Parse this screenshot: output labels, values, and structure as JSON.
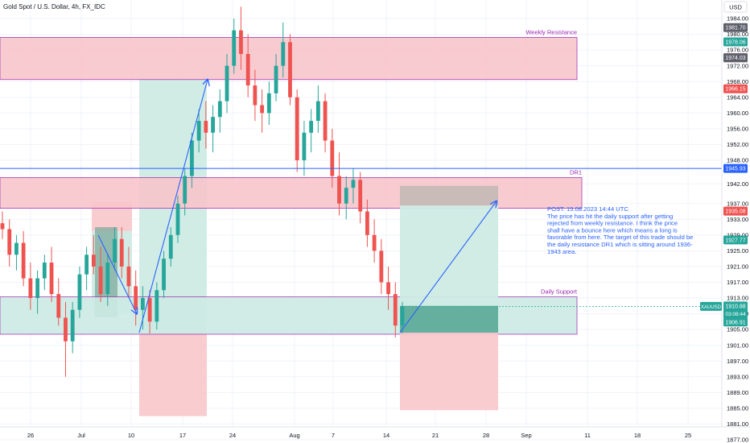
{
  "chart_title": "Gold Spot / U.S. Dollar, 4h, FX_IDC",
  "currency": "USD",
  "colors": {
    "up": "#26a69a",
    "down": "#ef5350",
    "zone_red_fill": "#f8c6cb",
    "zone_red_border": "#9c27b0",
    "zone_green_fill": "#cdebe4",
    "line_blue": "#2962ff",
    "grid": "#f0f3fa"
  },
  "annotations": {
    "weekly_resistance": "Weekly Resistance",
    "dr1": "DR1",
    "daily_support": "Daily Support",
    "post_lines": [
      "POST: 15.08.2023 14:44 UTC",
      "The price has hit the daily support after getting",
      "rejected from weekly resistance.  I think the price",
      "shall have a bounce here which means a long is",
      "favorable from here. The target of this trade should be",
      "the daily resistance DR1 which is sitting around 1936-",
      "1943 area."
    ]
  },
  "price_tags": [
    {
      "text": "1981.70",
      "value": 1981.7,
      "color": "#5d606b"
    },
    {
      "text": "1978.06",
      "value": 1978.06,
      "color": "#26a69a"
    },
    {
      "text": "1974.04",
      "value": 1974.04,
      "color": "#ef5350"
    },
    {
      "text": "1974.03",
      "value": 1974.03,
      "color": "#5d606b"
    },
    {
      "text": "1966.15",
      "value": 1966.15,
      "color": "#ef5350"
    },
    {
      "text": "1945.93",
      "value": 1945.93,
      "color": "#2962ff"
    },
    {
      "text": "1935.08",
      "value": 1935.08,
      "color": "#ef5350"
    },
    {
      "text": "1927.77",
      "value": 1927.77,
      "color": "#26a69a"
    },
    {
      "text": "1906.91",
      "value": 1906.91,
      "color": "#26a69a"
    }
  ],
  "last_price": {
    "symbol": "XAUUSD",
    "price": "1910.88",
    "countdown": "03:08:44",
    "value": 1910.88
  },
  "chart_data": {
    "type": "candlestick",
    "title": "Gold Spot / U.S. Dollar, 4h, FX_IDC",
    "ylim": [
      1875,
      1990
    ],
    "y_ticks": [
      "1984.00",
      "1980.00",
      "1976.00",
      "1972.00",
      "1968.00",
      "1964.00",
      "1960.00",
      "1956.00",
      "1952.00",
      "1948.00",
      "1942.00",
      "1937.00",
      "1933.00",
      "1929.00",
      "1925.00",
      "1921.00",
      "1917.00",
      "1913.00",
      "1909.00",
      "1905.00",
      "1901.00",
      "1897.00",
      "1893.00",
      "1889.00",
      "1885.00",
      "1881.00",
      "1877.00"
    ],
    "x_ticks": [
      "26",
      "Jul",
      "10",
      "17",
      "24",
      "Aug",
      "7",
      "14",
      "21",
      "28",
      "Sep",
      "11",
      "18",
      "25"
    ],
    "ohlc": [
      [
        1932.0,
        1935.0,
        1928.0,
        1930.5
      ],
      [
        1930.5,
        1933.0,
        1921.0,
        1924.0
      ],
      [
        1924.0,
        1929.0,
        1920.0,
        1927.0
      ],
      [
        1927.0,
        1930.0,
        1916.0,
        1918.0
      ],
      [
        1918.0,
        1922.0,
        1910.0,
        1913.0
      ],
      [
        1913.0,
        1920.0,
        1909.0,
        1918.0
      ],
      [
        1918.0,
        1924.0,
        1915.0,
        1922.0
      ],
      [
        1922.0,
        1926.0,
        1912.0,
        1914.0
      ],
      [
        1914.0,
        1918.0,
        1906.0,
        1908.0
      ],
      [
        1908.0,
        1912.0,
        1893.0,
        1902.0
      ],
      [
        1902.0,
        1912.0,
        1899.0,
        1910.0
      ],
      [
        1910.0,
        1921.0,
        1908.0,
        1919.0
      ],
      [
        1919.0,
        1926.0,
        1915.0,
        1924.0
      ],
      [
        1924.0,
        1929.0,
        1919.0,
        1921.0
      ],
      [
        1921.0,
        1926.0,
        1912.0,
        1914.0
      ],
      [
        1914.0,
        1924.0,
        1911.0,
        1922.0
      ],
      [
        1922.0,
        1931.0,
        1920.0,
        1928.0
      ],
      [
        1928.0,
        1931.0,
        1918.0,
        1921.0
      ],
      [
        1921.0,
        1926.0,
        1913.0,
        1916.0
      ],
      [
        1916.0,
        1920.0,
        1906.0,
        1910.0
      ],
      [
        1910.0,
        1916.0,
        1905.0,
        1913.0
      ],
      [
        1913.0,
        1915.0,
        1904.0,
        1907.0
      ],
      [
        1907.0,
        1917.0,
        1905.0,
        1915.0
      ],
      [
        1915.0,
        1925.0,
        1913.0,
        1923.0
      ],
      [
        1923.0,
        1931.0,
        1921.0,
        1929.0
      ],
      [
        1929.0,
        1939.0,
        1927.0,
        1937.0
      ],
      [
        1937.0,
        1946.0,
        1934.0,
        1944.0
      ],
      [
        1944.0,
        1955.0,
        1941.0,
        1953.0
      ],
      [
        1953.0,
        1961.0,
        1950.0,
        1958.0
      ],
      [
        1958.0,
        1963.0,
        1951.0,
        1955.0
      ],
      [
        1955.0,
        1962.0,
        1950.0,
        1959.0
      ],
      [
        1959.0,
        1966.0,
        1955.0,
        1963.0
      ],
      [
        1963.0,
        1975.0,
        1960.0,
        1972.0
      ],
      [
        1972.0,
        1984.0,
        1970.0,
        1981.0
      ],
      [
        1981.0,
        1987.0,
        1971.0,
        1975.0
      ],
      [
        1975.0,
        1980.0,
        1964.0,
        1967.0
      ],
      [
        1967.0,
        1971.0,
        1958.0,
        1962.0
      ],
      [
        1962.0,
        1966.0,
        1955.0,
        1960.0
      ],
      [
        1960.0,
        1968.0,
        1957.0,
        1965.0
      ],
      [
        1965.0,
        1975.0,
        1963.0,
        1972.0
      ],
      [
        1972.0,
        1983.0,
        1969.0,
        1978.0
      ],
      [
        1978.0,
        1980.0,
        1962.0,
        1964.0
      ],
      [
        1964.0,
        1966.0,
        1945.0,
        1948.0
      ],
      [
        1948.0,
        1958.0,
        1944.0,
        1955.0
      ],
      [
        1955.0,
        1961.0,
        1950.0,
        1958.0
      ],
      [
        1958.0,
        1967.0,
        1955.0,
        1963.0
      ],
      [
        1963.0,
        1965.0,
        1950.0,
        1953.0
      ],
      [
        1953.0,
        1956.0,
        1941.0,
        1944.0
      ],
      [
        1944.0,
        1950.0,
        1934.0,
        1937.0
      ],
      [
        1937.0,
        1944.0,
        1933.0,
        1941.0
      ],
      [
        1941.0,
        1946.0,
        1937.0,
        1943.0
      ],
      [
        1943.0,
        1945.0,
        1932.0,
        1935.0
      ],
      [
        1935.0,
        1938.0,
        1926.0,
        1929.0
      ],
      [
        1929.0,
        1933.0,
        1922.0,
        1925.0
      ],
      [
        1925.0,
        1928.0,
        1914.0,
        1917.0
      ],
      [
        1917.0,
        1921.0,
        1910.0,
        1914.0
      ],
      [
        1914.0,
        1917.0,
        1903.0,
        1906.0
      ],
      [
        1906.0,
        1912.0,
        1904.0,
        1910.9
      ]
    ],
    "zones": [
      {
        "name": "Weekly Resistance",
        "y_low": 1968.5,
        "y_high": 1979.2
      },
      {
        "name": "DR1",
        "y_low": 1935.8,
        "y_high": 1943.6
      },
      {
        "name": "Daily Support",
        "y_low": 1903.8,
        "y_high": 1913.3
      }
    ],
    "levels": [
      {
        "name": "DR1 line",
        "value": 1945.93
      }
    ]
  }
}
